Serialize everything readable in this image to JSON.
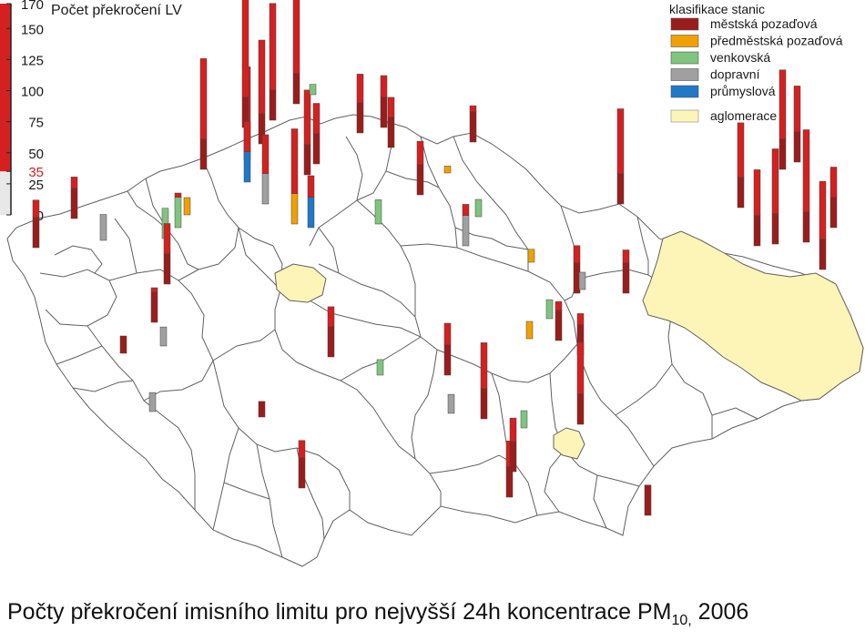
{
  "scale": {
    "title": "Počet překročení LV",
    "ticks": [
      "170",
      "150",
      "125",
      "100",
      "75",
      "50",
      "35",
      "25",
      "0"
    ],
    "tick_values": [
      170,
      150,
      125,
      100,
      75,
      50,
      35,
      25,
      0
    ],
    "limit_value": 35,
    "limit_color": "#d42020"
  },
  "legend": {
    "title": "klasifikace stanic",
    "items": [
      {
        "label": "městská pozaďová",
        "color": "#9b1c1c"
      },
      {
        "label": "předměstská pozaďová",
        "color": "#f0a000"
      },
      {
        "label": "venkovská",
        "color": "#7fc47f"
      },
      {
        "label": "dopravní",
        "color": "#a0a0a0"
      },
      {
        "label": "průmyslová",
        "color": "#1f78c8"
      }
    ],
    "agglomeration": {
      "label": "aglomerace",
      "color": "#fdf5b8"
    }
  },
  "caption": {
    "main": "Počty překročení imisního limitu pro nejvyšší 24h koncentrace  PM",
    "sub": "10,",
    "year": " 2006"
  },
  "stations": [
    {
      "cls": 0,
      "v": 55
    },
    {
      "cls": 0,
      "v": 48
    },
    {
      "cls": 1,
      "v": 20
    },
    {
      "cls": 2,
      "v": 40
    },
    {
      "cls": 0,
      "v": 128
    },
    {
      "cls": 3,
      "v": 108
    },
    {
      "cls": 0,
      "v": 168
    },
    {
      "cls": 4,
      "v": 70
    },
    {
      "cls": 0,
      "v": 135
    },
    {
      "cls": 0,
      "v": 120
    },
    {
      "cls": 3,
      "v": 80
    },
    {
      "cls": 0,
      "v": 158
    },
    {
      "cls": 1,
      "v": 110
    },
    {
      "cls": 0,
      "v": 98
    },
    {
      "cls": 4,
      "v": 60
    },
    {
      "cls": 0,
      "v": 70
    },
    {
      "cls": 2,
      "v": 12
    },
    {
      "cls": 0,
      "v": 68
    },
    {
      "cls": 1,
      "v": 8
    },
    {
      "cls": 0,
      "v": 60
    },
    {
      "cls": 3,
      "v": 48
    },
    {
      "cls": 0,
      "v": 58
    },
    {
      "cls": 0,
      "v": 42
    },
    {
      "cls": 2,
      "v": 20
    },
    {
      "cls": 0,
      "v": 110
    },
    {
      "cls": 0,
      "v": 98
    },
    {
      "cls": 0,
      "v": 115
    },
    {
      "cls": 0,
      "v": 88
    },
    {
      "cls": 1,
      "v": 15
    },
    {
      "cls": 0,
      "v": 62
    },
    {
      "cls": 2,
      "v": 35
    },
    {
      "cls": 3,
      "v": 30
    },
    {
      "cls": 0,
      "v": 70
    },
    {
      "cls": 0,
      "v": 20
    },
    {
      "cls": 0,
      "v": 40
    },
    {
      "cls": 3,
      "v": 22
    },
    {
      "cls": 0,
      "v": 18
    },
    {
      "cls": 3,
      "v": 22
    },
    {
      "cls": 0,
      "v": 55
    },
    {
      "cls": 2,
      "v": 18
    },
    {
      "cls": 0,
      "v": 58
    },
    {
      "cls": 3,
      "v": 22
    },
    {
      "cls": 0,
      "v": 88
    },
    {
      "cls": 0,
      "v": 60
    },
    {
      "cls": 0,
      "v": 45
    },
    {
      "cls": 0,
      "v": 48
    },
    {
      "cls": 0,
      "v": 55
    },
    {
      "cls": 0,
      "v": 50
    },
    {
      "cls": 0,
      "v": 88
    },
    {
      "cls": 0,
      "v": 110
    },
    {
      "cls": 0,
      "v": 130
    },
    {
      "cls": 0,
      "v": 102
    },
    {
      "cls": 0,
      "v": 70
    },
    {
      "cls": 2,
      "v": 22
    },
    {
      "cls": 0,
      "v": 95
    },
    {
      "cls": 0,
      "v": 65
    },
    {
      "cls": 0,
      "v": 62
    },
    {
      "cls": 1,
      "v": 20
    },
    {
      "cls": 2,
      "v": 28
    },
    {
      "cls": 2,
      "v": 20
    },
    {
      "cls": 0,
      "v": 35
    },
    {
      "cls": 3,
      "v": 20
    }
  ]
}
